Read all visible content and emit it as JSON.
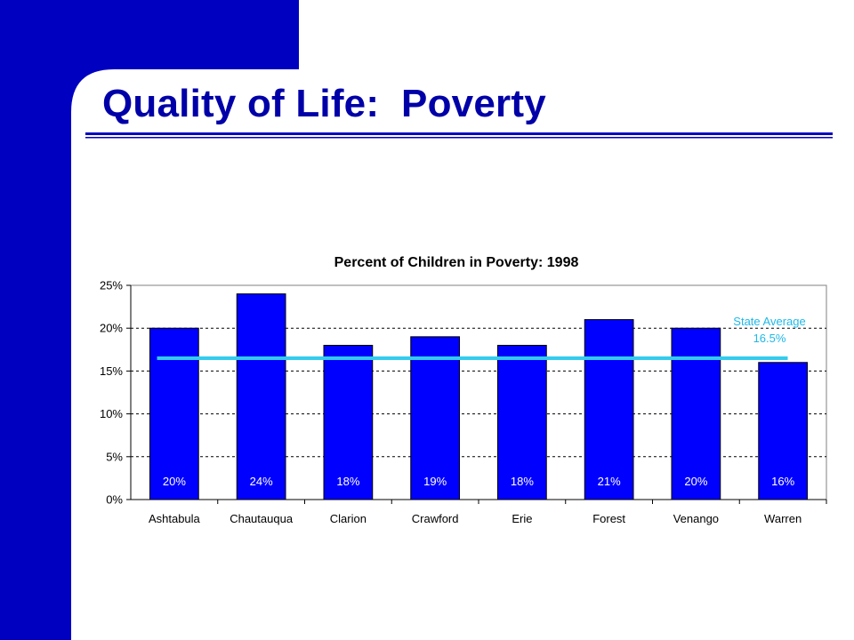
{
  "slide": {
    "title": "Quality of Life:  Poverty",
    "colors": {
      "brand_blue": "#0000c0",
      "title_blue": "#0000a8",
      "bar_blue": "#0000ff",
      "state_line": "#33ccee"
    }
  },
  "chart_data": {
    "type": "bar",
    "title": "Percent of Children in Poverty: 1998",
    "categories": [
      "Ashtabula",
      "Chautauqua",
      "Clarion",
      "Crawford",
      "Erie",
      "Forest",
      "Venango",
      "Warren"
    ],
    "values": [
      20,
      24,
      18,
      19,
      18,
      21,
      20,
      16
    ],
    "data_labels": [
      "20%",
      "24%",
      "18%",
      "19%",
      "18%",
      "21%",
      "20%",
      "16%"
    ],
    "ylim": [
      0,
      25
    ],
    "yticks": [
      0,
      5,
      10,
      15,
      20,
      25
    ],
    "ytick_labels": [
      "0%",
      "5%",
      "10%",
      "15%",
      "20%",
      "25%"
    ],
    "grid": true,
    "reference_line": {
      "label_line1": "State Average",
      "label_line2": "16.5%",
      "value": 16.5
    }
  }
}
